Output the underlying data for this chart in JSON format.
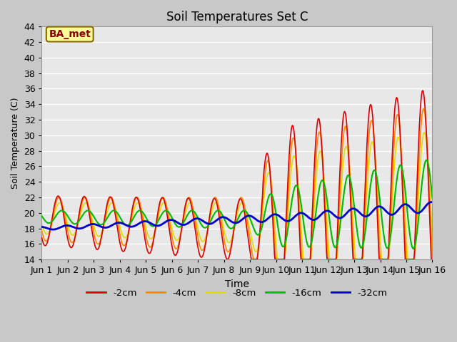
{
  "title": "Soil Temperatures Set C",
  "xlabel": "Time",
  "ylabel": "Soil Temperature (C)",
  "ylim": [
    14,
    44
  ],
  "yticks": [
    14,
    16,
    18,
    20,
    22,
    24,
    26,
    28,
    30,
    32,
    34,
    36,
    38,
    40,
    42,
    44
  ],
  "xtick_labels": [
    "Jun 1",
    "Jun 2",
    "Jun 3",
    "Jun 4",
    "Jun 5",
    "Jun 6",
    "Jun 7",
    "Jun 8",
    "Jun 9",
    "Jun 10",
    "Jun 11",
    "Jun 12",
    "Jun 13",
    "Jun 14",
    "Jun 15",
    "Jun 16"
  ],
  "legend_labels": [
    "-2cm",
    "-4cm",
    "-8cm",
    "-16cm",
    "-32cm"
  ],
  "legend_colors": [
    "#dd0000",
    "#ff8800",
    "#dddd00",
    "#00bb00",
    "#0000cc"
  ],
  "line_widths": [
    1.2,
    1.2,
    1.2,
    1.5,
    2.0
  ],
  "annotation_text": "BA_met",
  "annotation_bg": "#ffff99",
  "annotation_border": "#886600",
  "fig_bg": "#c8c8c8",
  "plot_bg": "#e8e8e8",
  "grid_color": "#ffffff"
}
